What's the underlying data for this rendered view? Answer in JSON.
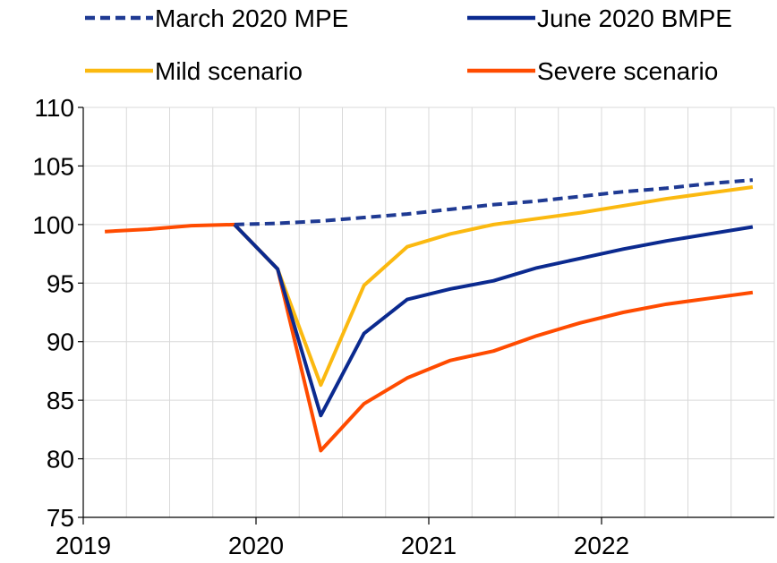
{
  "chart_data": {
    "type": "line",
    "title": "",
    "xlabel": "",
    "ylabel": "",
    "ylim": [
      75,
      110
    ],
    "yticks": [
      75,
      80,
      85,
      90,
      95,
      100,
      105,
      110
    ],
    "xlim": [
      "2019-Q1",
      "2022-Q4"
    ],
    "x": [
      "2019-Q1",
      "2019-Q2",
      "2019-Q3",
      "2019-Q4",
      "2020-Q1",
      "2020-Q2",
      "2020-Q3",
      "2020-Q4",
      "2021-Q1",
      "2021-Q2",
      "2021-Q3",
      "2021-Q4",
      "2022-Q1",
      "2022-Q2",
      "2022-Q3",
      "2022-Q4"
    ],
    "year_labels": [
      "2019",
      "2020",
      "2021",
      "2022"
    ],
    "grid": true,
    "legend_position": "top",
    "series": [
      {
        "name": "March 2020 MPE",
        "color": "#1f3a93",
        "dashed": true,
        "x": [
          "2019-Q4",
          "2020-Q1",
          "2020-Q2",
          "2020-Q3",
          "2020-Q4",
          "2021-Q1",
          "2021-Q2",
          "2021-Q3",
          "2021-Q4",
          "2022-Q1",
          "2022-Q2",
          "2022-Q3",
          "2022-Q4"
        ],
        "values": [
          100.0,
          100.1,
          100.3,
          100.6,
          100.9,
          101.3,
          101.7,
          102.0,
          102.4,
          102.8,
          103.1,
          103.5,
          103.8
        ]
      },
      {
        "name": "June 2020 BMPE",
        "color": "#0b2a8f",
        "dashed": false,
        "x": [
          "2019-Q4",
          "2020-Q1",
          "2020-Q2",
          "2020-Q3",
          "2020-Q4",
          "2021-Q1",
          "2021-Q2",
          "2021-Q3",
          "2021-Q4",
          "2022-Q1",
          "2022-Q2",
          "2022-Q3",
          "2022-Q4"
        ],
        "values": [
          100.0,
          96.2,
          83.7,
          90.7,
          93.6,
          94.5,
          95.2,
          96.3,
          97.1,
          97.9,
          98.6,
          99.2,
          99.8
        ]
      },
      {
        "name": "Mild scenario",
        "color": "#fbb910",
        "dashed": false,
        "x": [
          "2019-Q4",
          "2020-Q1",
          "2020-Q2",
          "2020-Q3",
          "2020-Q4",
          "2021-Q1",
          "2021-Q2",
          "2021-Q3",
          "2021-Q4",
          "2022-Q1",
          "2022-Q2",
          "2022-Q3",
          "2022-Q4"
        ],
        "values": [
          100.0,
          96.2,
          86.3,
          94.8,
          98.1,
          99.2,
          100.0,
          100.5,
          101.0,
          101.6,
          102.2,
          102.7,
          103.2
        ]
      },
      {
        "name": "Severe scenario",
        "color": "#ff4b00",
        "dashed": false,
        "x": [
          "2019-Q1",
          "2019-Q2",
          "2019-Q3",
          "2019-Q4",
          "2020-Q1",
          "2020-Q2",
          "2020-Q3",
          "2020-Q4",
          "2021-Q1",
          "2021-Q2",
          "2021-Q3",
          "2021-Q4",
          "2022-Q1",
          "2022-Q2",
          "2022-Q3",
          "2022-Q4"
        ],
        "values": [
          99.4,
          99.6,
          99.9,
          100.0,
          96.2,
          80.7,
          84.7,
          86.9,
          88.4,
          89.2,
          90.5,
          91.6,
          92.5,
          93.2,
          93.7,
          94.2
        ]
      }
    ],
    "series_draw_order": [
      "Severe scenario",
      "Mild scenario",
      "June 2020 BMPE",
      "March 2020 MPE"
    ],
    "axis_color": "#000000",
    "grid_color": "#d9d9d9"
  }
}
